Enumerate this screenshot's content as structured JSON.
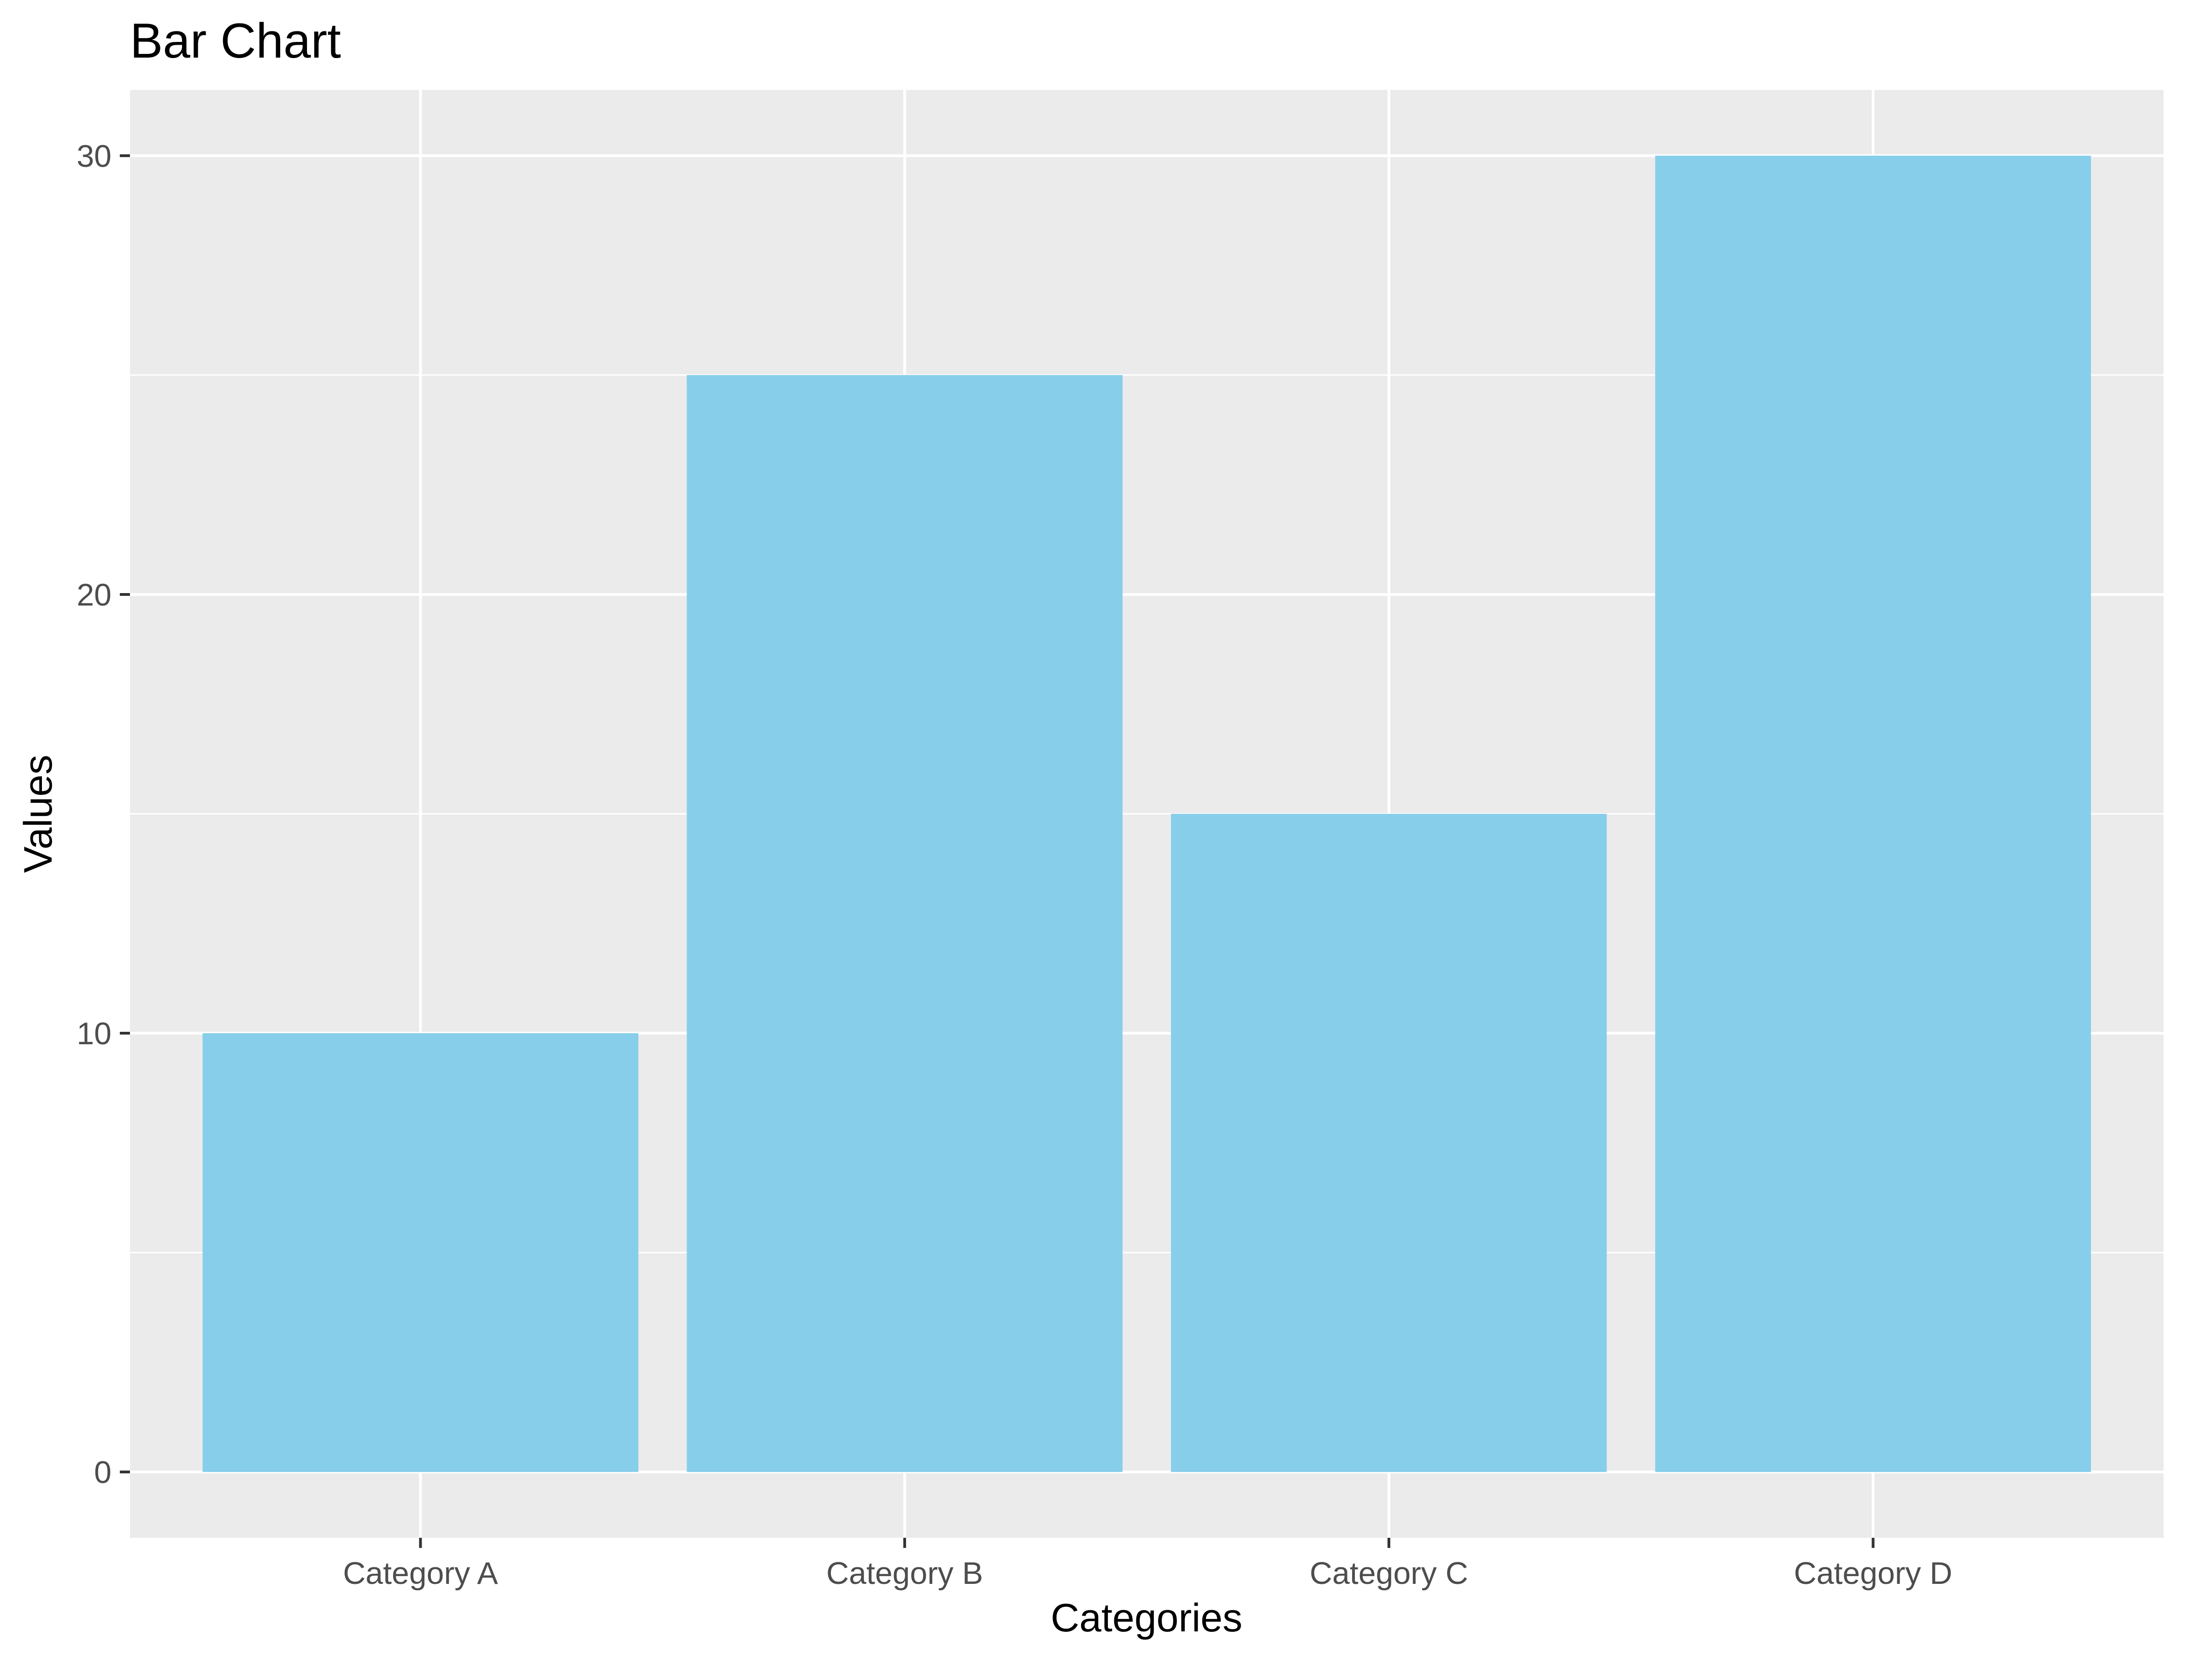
{
  "chart_data": {
    "type": "bar",
    "title": "Bar Chart",
    "xlabel": "Categories",
    "ylabel": "Values",
    "categories": [
      "Category A",
      "Category B",
      "Category C",
      "Category D"
    ],
    "values": [
      10,
      25,
      15,
      30
    ],
    "ylim": [
      -1.5,
      31.5
    ],
    "yticks": [
      0,
      10,
      20,
      30
    ],
    "grid": true,
    "legend": "none",
    "colors": {
      "bar": "#87CEEB",
      "panel": "#EBEBEB",
      "grid": "#FFFFFF"
    }
  }
}
